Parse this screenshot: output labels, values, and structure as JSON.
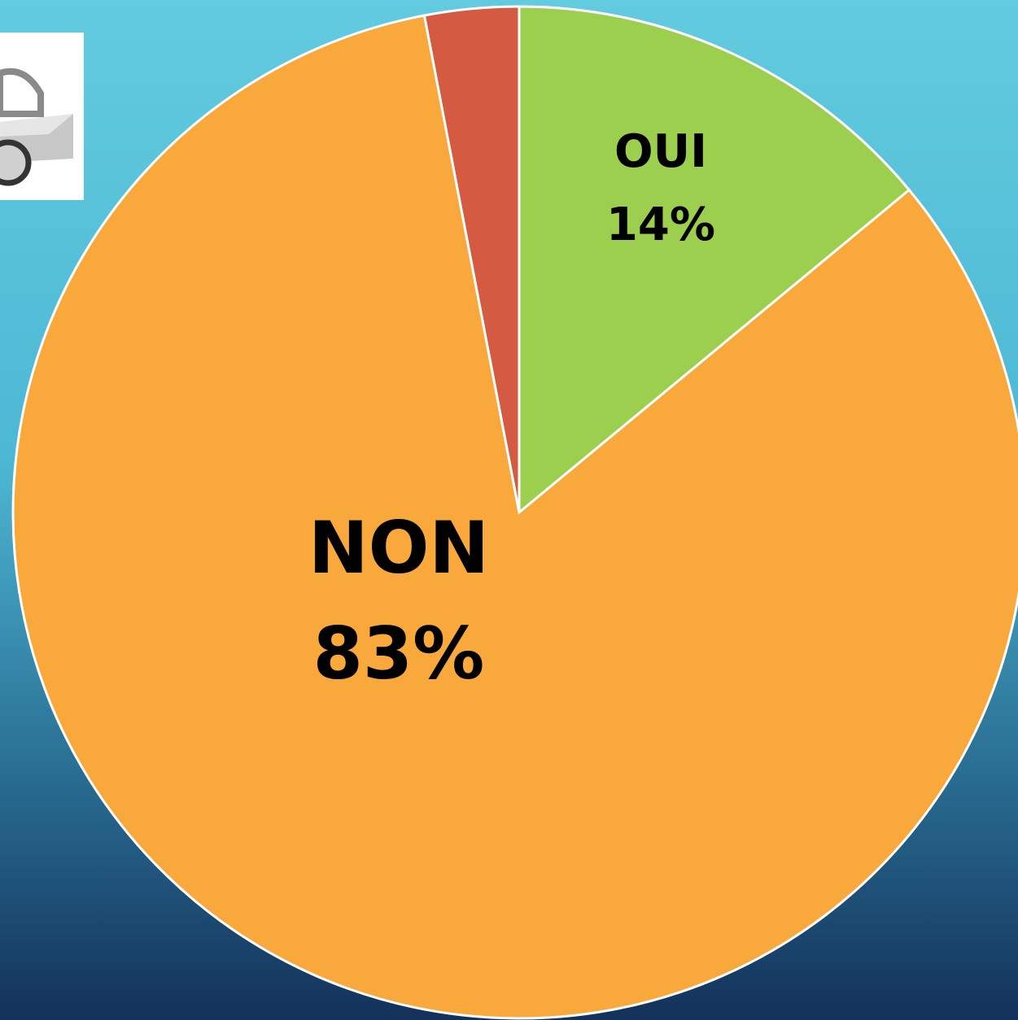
{
  "chart_data": {
    "type": "pie",
    "categories": [
      "OUI",
      "NON",
      null
    ],
    "values": [
      14,
      83,
      3
    ],
    "value_labels": [
      "14%",
      "83%",
      null
    ],
    "colors": [
      "#9dcf4f",
      "#f9a83c",
      "#d45a41"
    ]
  }
}
